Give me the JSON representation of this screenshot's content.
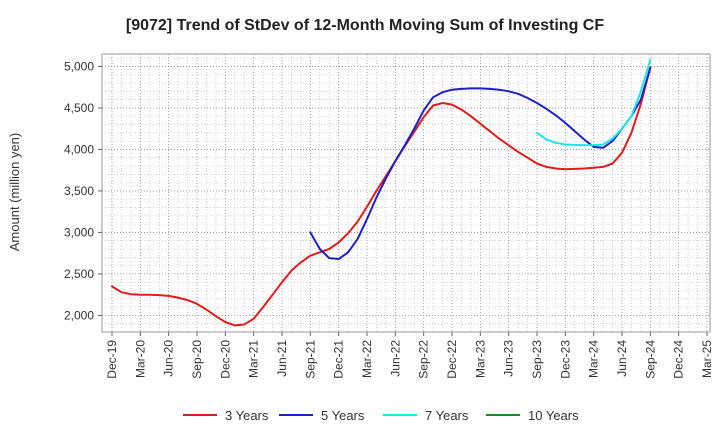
{
  "chart_data": {
    "type": "line",
    "title": "[9072]  Trend of StDev of 12-Month Moving Sum of Investing CF",
    "xlabel": "",
    "ylabel": "Amount (million yen)",
    "ylim": [
      1800,
      5150
    ],
    "yticks": [
      2000,
      2500,
      3000,
      3500,
      4000,
      4500,
      5000
    ],
    "ytick_labels": [
      "2,000",
      "2,500",
      "3,000",
      "3,500",
      "4,000",
      "4,500",
      "5,000"
    ],
    "xticks": [
      "Dec-19",
      "Mar-20",
      "Jun-20",
      "Sep-20",
      "Dec-20",
      "Mar-21",
      "Jun-21",
      "Sep-21",
      "Dec-21",
      "Mar-22",
      "Jun-22",
      "Sep-22",
      "Dec-22",
      "Mar-23",
      "Jun-23",
      "Sep-23",
      "Dec-23",
      "Mar-24",
      "Jun-24",
      "Sep-24",
      "Dec-24",
      "Mar-25"
    ],
    "x_range": [
      "2019-12",
      "2025-03"
    ],
    "grid": true,
    "legend_position": "bottom",
    "series": [
      {
        "name": "3 Years",
        "color": "#e01b1b",
        "points": [
          [
            "2019-12",
            2350
          ],
          [
            "2020-01",
            2280
          ],
          [
            "2020-02",
            2255
          ],
          [
            "2020-03",
            2250
          ],
          [
            "2020-04",
            2250
          ],
          [
            "2020-05",
            2245
          ],
          [
            "2020-06",
            2235
          ],
          [
            "2020-07",
            2215
          ],
          [
            "2020-08",
            2185
          ],
          [
            "2020-09",
            2140
          ],
          [
            "2020-10",
            2070
          ],
          [
            "2020-11",
            1990
          ],
          [
            "2020-12",
            1920
          ],
          [
            "2021-01",
            1880
          ],
          [
            "2021-02",
            1890
          ],
          [
            "2021-03",
            1960
          ],
          [
            "2021-04",
            2100
          ],
          [
            "2021-05",
            2250
          ],
          [
            "2021-06",
            2400
          ],
          [
            "2021-07",
            2540
          ],
          [
            "2021-08",
            2640
          ],
          [
            "2021-09",
            2720
          ],
          [
            "2021-10",
            2760
          ],
          [
            "2021-11",
            2800
          ],
          [
            "2021-12",
            2880
          ],
          [
            "2022-01",
            2990
          ],
          [
            "2022-02",
            3130
          ],
          [
            "2022-03",
            3310
          ],
          [
            "2022-04",
            3500
          ],
          [
            "2022-05",
            3680
          ],
          [
            "2022-06",
            3860
          ],
          [
            "2022-07",
            4040
          ],
          [
            "2022-08",
            4210
          ],
          [
            "2022-09",
            4390
          ],
          [
            "2022-10",
            4530
          ],
          [
            "2022-11",
            4560
          ],
          [
            "2022-12",
            4540
          ],
          [
            "2023-01",
            4480
          ],
          [
            "2023-02",
            4400
          ],
          [
            "2023-03",
            4310
          ],
          [
            "2023-04",
            4220
          ],
          [
            "2023-05",
            4130
          ],
          [
            "2023-06",
            4050
          ],
          [
            "2023-07",
            3970
          ],
          [
            "2023-08",
            3900
          ],
          [
            "2023-09",
            3830
          ],
          [
            "2023-10",
            3790
          ],
          [
            "2023-11",
            3770
          ],
          [
            "2023-12",
            3760
          ],
          [
            "2024-01",
            3765
          ],
          [
            "2024-02",
            3770
          ],
          [
            "2024-03",
            3780
          ],
          [
            "2024-04",
            3790
          ],
          [
            "2024-05",
            3830
          ],
          [
            "2024-06",
            3960
          ],
          [
            "2024-07",
            4200
          ],
          [
            "2024-08",
            4550
          ],
          [
            "2024-09",
            4990
          ]
        ]
      },
      {
        "name": "5 Years",
        "color": "#1f1fc8",
        "points": [
          [
            "2021-09",
            3000
          ],
          [
            "2021-10",
            2800
          ],
          [
            "2021-11",
            2690
          ],
          [
            "2021-12",
            2680
          ],
          [
            "2022-01",
            2760
          ],
          [
            "2022-02",
            2920
          ],
          [
            "2022-03",
            3160
          ],
          [
            "2022-04",
            3420
          ],
          [
            "2022-05",
            3650
          ],
          [
            "2022-06",
            3860
          ],
          [
            "2022-07",
            4050
          ],
          [
            "2022-08",
            4250
          ],
          [
            "2022-09",
            4470
          ],
          [
            "2022-10",
            4630
          ],
          [
            "2022-11",
            4690
          ],
          [
            "2022-12",
            4720
          ],
          [
            "2023-01",
            4730
          ],
          [
            "2023-02",
            4735
          ],
          [
            "2023-03",
            4735
          ],
          [
            "2023-04",
            4730
          ],
          [
            "2023-05",
            4720
          ],
          [
            "2023-06",
            4700
          ],
          [
            "2023-07",
            4670
          ],
          [
            "2023-08",
            4620
          ],
          [
            "2023-09",
            4560
          ],
          [
            "2023-10",
            4490
          ],
          [
            "2023-11",
            4410
          ],
          [
            "2023-12",
            4320
          ],
          [
            "2024-01",
            4220
          ],
          [
            "2024-02",
            4120
          ],
          [
            "2024-03",
            4030
          ],
          [
            "2024-04",
            4020
          ],
          [
            "2024-05",
            4100
          ],
          [
            "2024-06",
            4250
          ],
          [
            "2024-07",
            4400
          ],
          [
            "2024-08",
            4600
          ],
          [
            "2024-09",
            4980
          ]
        ]
      },
      {
        "name": "7 Years",
        "color": "#18e8e8",
        "points": [
          [
            "2023-09",
            4200
          ],
          [
            "2023-10",
            4120
          ],
          [
            "2023-11",
            4080
          ],
          [
            "2023-12",
            4060
          ],
          [
            "2024-01",
            4055
          ],
          [
            "2024-02",
            4050
          ],
          [
            "2024-03",
            4050
          ],
          [
            "2024-04",
            4060
          ],
          [
            "2024-05",
            4130
          ],
          [
            "2024-06",
            4250
          ],
          [
            "2024-07",
            4400
          ],
          [
            "2024-08",
            4700
          ],
          [
            "2024-09",
            5080
          ]
        ]
      },
      {
        "name": "10 Years",
        "color": "#1f8a1f",
        "points": []
      }
    ]
  }
}
